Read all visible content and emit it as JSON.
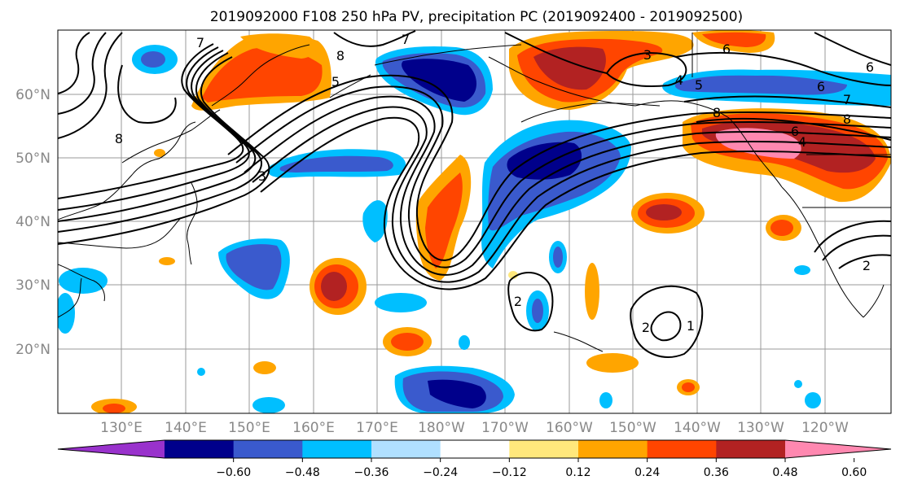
{
  "title": "2019092000 F108 250 hPa PV, precipitation PC (2019092400 - 2019092500)",
  "map": {
    "lat_labels": [
      "60°N",
      "50°N",
      "40°N",
      "30°N",
      "20°N"
    ],
    "lon_labels": [
      "130°E",
      "140°E",
      "150°E",
      "160°E",
      "170°E",
      "180°W",
      "170°W",
      "160°W",
      "150°W",
      "140°W",
      "130°W",
      "120°W"
    ],
    "contour_labels": [
      "7",
      "8",
      "7",
      "8",
      "6",
      "8",
      "5",
      "3",
      "6",
      "4",
      "5",
      "6",
      "7",
      "8",
      "6",
      "4",
      "3",
      "2",
      "1",
      "2",
      "2"
    ]
  },
  "colorbar": {
    "ticks": [
      "−0.60",
      "−0.48",
      "−0.36",
      "−0.24",
      "−0.12",
      "0.12",
      "0.24",
      "0.36",
      "0.48",
      "0.60"
    ],
    "colors": [
      "#9932CC",
      "#00008B",
      "#3A5ACD",
      "#00BFFF",
      "#B0E0FF",
      "#FFFFFF",
      "#FFE87C",
      "#FFA500",
      "#FF4500",
      "#B22222",
      "#FF88B0"
    ]
  }
}
